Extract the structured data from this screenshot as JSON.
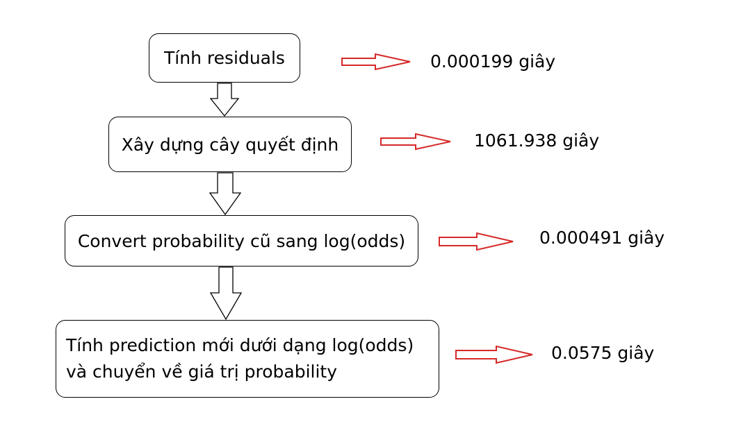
{
  "steps": [
    {
      "label": "Tính residuals",
      "time": "0.000199 giây"
    },
    {
      "label": "Xây dựng cây quyết định",
      "time": "1061.938 giây"
    },
    {
      "label": "Convert probability cũ sang log(odds)",
      "time": "0.000491 giây"
    },
    {
      "label_line1": "Tính prediction mới dưới dạng log(odds)",
      "label_line2": "và chuyển về giá trị probability",
      "time": "0.0575 giây"
    }
  ],
  "colors": {
    "flow_arrow": "#000000",
    "time_arrow": "#d62828"
  }
}
